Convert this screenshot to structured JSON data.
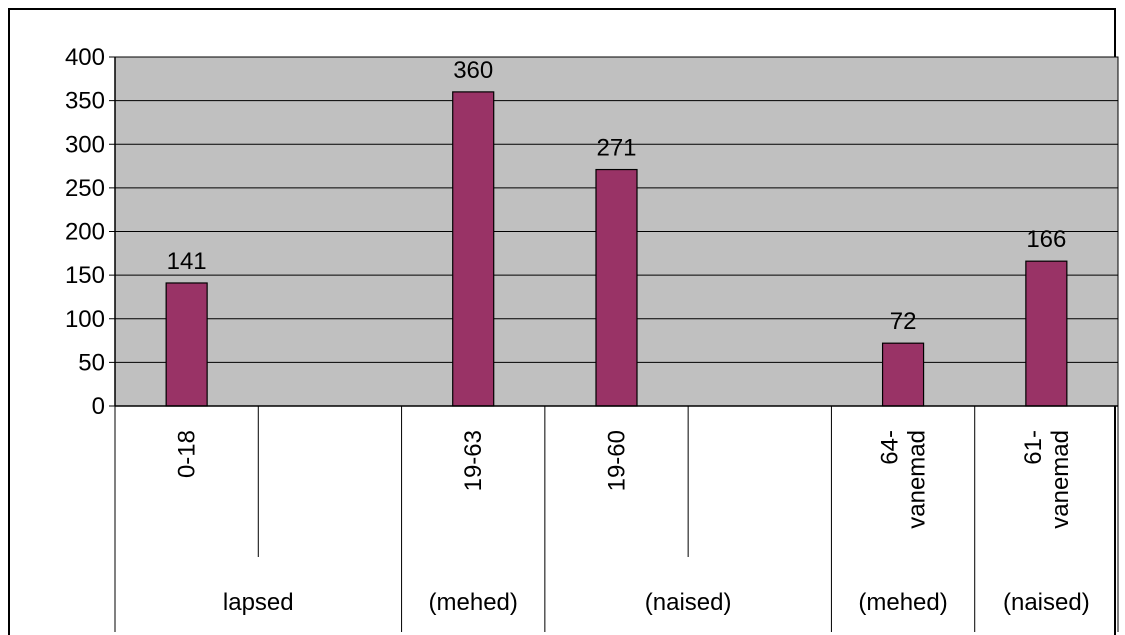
{
  "chart_data": {
    "type": "bar",
    "categories": [
      {
        "sub": "0-18",
        "group": "lapsed"
      },
      {
        "sub": "",
        "group": "lapsed"
      },
      {
        "sub": "19-63",
        "group": "(mehed)"
      },
      {
        "sub": "19-60",
        "group": "(naised)"
      },
      {
        "sub": "",
        "group": "(naised)"
      },
      {
        "sub": "64-vanemad",
        "group": "(mehed)"
      },
      {
        "sub": "61-vanemad",
        "group": "(naised)"
      }
    ],
    "sub_labels": [
      [
        "0-18"
      ],
      [
        ""
      ],
      [
        "19-63"
      ],
      [
        "19-60"
      ],
      [
        ""
      ],
      [
        "64-",
        "vanemad"
      ],
      [
        "61-",
        "vanemad"
      ]
    ],
    "groups": [
      {
        "label": "lapsed",
        "span": 2
      },
      {
        "label": "(mehed)",
        "span": 1
      },
      {
        "label": "(naised)",
        "span": 2
      },
      {
        "label": "(mehed)",
        "span": 1
      },
      {
        "label": "(naised)",
        "span": 1
      }
    ],
    "values": [
      141,
      null,
      360,
      271,
      null,
      72,
      166
    ],
    "data_labels": [
      "141",
      "",
      "360",
      "271",
      "",
      "72",
      "166"
    ],
    "ylim": [
      0,
      400
    ],
    "yticks": [
      0,
      50,
      100,
      150,
      200,
      250,
      300,
      350,
      400
    ],
    "grid": true,
    "legend": "none",
    "colors": {
      "bar": "#993366",
      "plot_bg": "#c0c0c0",
      "gridline": "#000000"
    }
  }
}
